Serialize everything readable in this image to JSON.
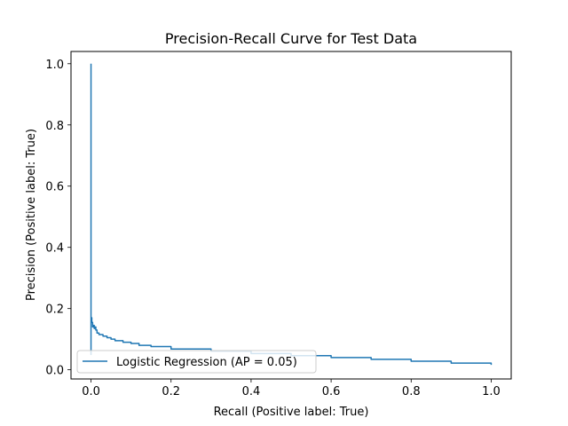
{
  "chart_data": {
    "type": "line",
    "title": "Precision-Recall Curve for Test Data",
    "xlabel": "Recall (Positive label: True)",
    "ylabel": "Precision (Positive label: True)",
    "xlim": [
      -0.05,
      1.05
    ],
    "ylim": [
      -0.03,
      1.04
    ],
    "xticks": [
      0.0,
      0.2,
      0.4,
      0.6,
      0.8,
      1.0
    ],
    "xtick_labels": [
      "0.0",
      "0.2",
      "0.4",
      "0.6",
      "0.8",
      "1.0"
    ],
    "yticks": [
      0.0,
      0.2,
      0.4,
      0.6,
      0.8,
      1.0
    ],
    "ytick_labels": [
      "0.0",
      "0.2",
      "0.4",
      "0.6",
      "0.8",
      "1.0"
    ],
    "grid": false,
    "legend": {
      "entry": "Logistic Regression (AP = 0.05)",
      "placement": "lower-left"
    },
    "series": [
      {
        "name": "Logistic Regression (AP = 0.05)",
        "color": "#1f77b4",
        "step": true,
        "x": [
          0.0,
          0.0,
          0.0,
          0.0,
          0.0,
          0.0,
          0.0,
          0.0,
          0.0,
          0.0,
          0.002,
          0.004,
          0.006,
          0.008,
          0.01,
          0.012,
          0.015,
          0.02,
          0.03,
          0.04,
          0.05,
          0.06,
          0.08,
          0.1,
          0.12,
          0.15,
          0.2,
          0.3,
          0.4,
          0.5,
          0.6,
          0.7,
          0.8,
          0.9,
          1.0
        ],
        "y": [
          1.0,
          0.05,
          0.5,
          0.1,
          0.27,
          0.12,
          0.21,
          0.15,
          0.19,
          0.17,
          0.155,
          0.14,
          0.145,
          0.135,
          0.14,
          0.13,
          0.12,
          0.115,
          0.11,
          0.105,
          0.1,
          0.095,
          0.09,
          0.086,
          0.08,
          0.076,
          0.068,
          0.061,
          0.053,
          0.046,
          0.04,
          0.034,
          0.028,
          0.022,
          0.016
        ]
      }
    ]
  }
}
